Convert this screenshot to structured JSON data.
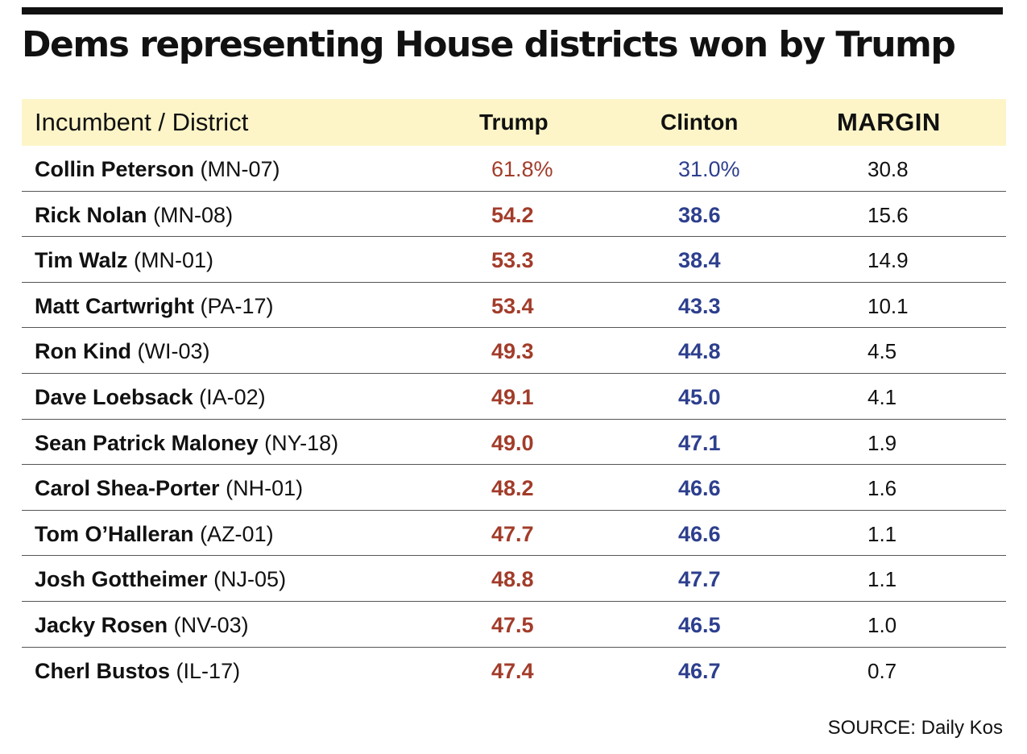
{
  "title": "Dems representing House districts won by Trump",
  "colors": {
    "trump": "#a23c2a",
    "clinton": "#2d3f8e",
    "header_bg": "#fdf5c8"
  },
  "chart_data": {
    "type": "table",
    "title": "Dems representing House districts won by Trump",
    "columns": [
      "Incumbent / District",
      "Trump",
      "Clinton",
      "MARGIN"
    ],
    "rows": [
      {
        "name": "Collin Peterson",
        "district": "(MN-07)",
        "trump": "61.8%",
        "clinton": "31.0%",
        "margin": "30.8"
      },
      {
        "name": "Rick Nolan",
        "district": "(MN-08)",
        "trump": "54.2",
        "clinton": "38.6",
        "margin": "15.6"
      },
      {
        "name": "Tim Walz",
        "district": "(MN-01)",
        "trump": "53.3",
        "clinton": "38.4",
        "margin": "14.9"
      },
      {
        "name": "Matt Cartwright",
        "district": "(PA-17)",
        "trump": "53.4",
        "clinton": "43.3",
        "margin": "10.1"
      },
      {
        "name": "Ron Kind",
        "district": "(WI-03)",
        "trump": "49.3",
        "clinton": "44.8",
        "margin": "4.5"
      },
      {
        "name": "Dave Loebsack",
        "district": "(IA-02)",
        "trump": "49.1",
        "clinton": "45.0",
        "margin": "4.1"
      },
      {
        "name": "Sean Patrick Maloney",
        "district": "(NY-18)",
        "trump": "49.0",
        "clinton": "47.1",
        "margin": "1.9"
      },
      {
        "name": "Carol Shea-Porter",
        "district": "(NH-01)",
        "trump": "48.2",
        "clinton": "46.6",
        "margin": "1.6"
      },
      {
        "name": "Tom O’Halleran",
        "district": "(AZ-01)",
        "trump": "47.7",
        "clinton": "46.6",
        "margin": "1.1"
      },
      {
        "name": "Josh Gottheimer",
        "district": "(NJ-05)",
        "trump": "48.8",
        "clinton": "47.7",
        "margin": "1.1"
      },
      {
        "name": "Jacky Rosen",
        "district": "(NV-03)",
        "trump": "47.5",
        "clinton": "46.5",
        "margin": "1.0"
      },
      {
        "name": "Cherl Bustos",
        "district": "(IL-17)",
        "trump": "47.4",
        "clinton": "46.7",
        "margin": "0.7"
      }
    ]
  },
  "source": "SOURCE: Daily Kos"
}
